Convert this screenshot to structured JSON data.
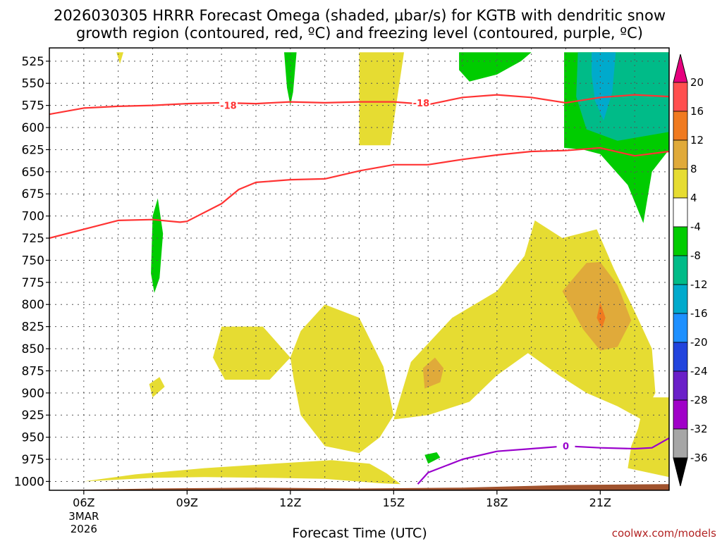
{
  "title": {
    "line1": "2026030305 HRRR Forecast Omega (shaded, μbar/s) for KGTB with dendritic snow",
    "line2": "growth region (contoured, red, ºC) and freezing level (contoured, purple, ºC)"
  },
  "credit": "coolwx.com/models",
  "chart_data": {
    "type": "time-height",
    "title": "2026030305 HRRR Forecast Omega (shaded, μbar/s) for KGTB with dendritic snow growth region (contoured, red, ºC) and freezing level (contoured, purple, ºC)",
    "xlabel": "Forecast Time (UTC)",
    "ylabel": "",
    "x_range_hours_utc": [
      5,
      23.0
    ],
    "y_range_hpa": [
      1010,
      510
    ],
    "y_reversed": true,
    "grid": true,
    "x_ticks": [
      {
        "hour": 6,
        "label": "06Z",
        "date": [
          "3MAR",
          "2026"
        ]
      },
      {
        "hour": 9,
        "label": "09Z"
      },
      {
        "hour": 12,
        "label": "12Z"
      },
      {
        "hour": 15,
        "label": "15Z"
      },
      {
        "hour": 18,
        "label": "18Z"
      },
      {
        "hour": 21,
        "label": "21Z"
      }
    ],
    "y_ticks": [
      525,
      550,
      575,
      600,
      625,
      650,
      675,
      700,
      725,
      750,
      775,
      800,
      825,
      850,
      875,
      900,
      925,
      950,
      975,
      1000
    ],
    "colorbar": {
      "units": "μbar/s",
      "bounds": [
        20,
        16,
        12,
        8,
        4,
        -4,
        -8,
        -12,
        -16,
        -20,
        -24,
        -28,
        -32,
        -36
      ],
      "colors": [
        "#ff4f4f",
        "#f07a20",
        "#e0aa3a",
        "#e6dc32",
        "#ffffff",
        "#00cc00",
        "#00bb88",
        "#00aacc",
        "#1e90ff",
        "#2244dd",
        "#6a1fc8",
        "#a000c8",
        "#a6a6a6"
      ],
      "top_arrow_color": "#e6007e",
      "bottom_arrow_color": "#000000"
    },
    "omega_regions": [
      {
        "class": "4 to 8",
        "color": "#e6dc32",
        "points": [
          [
            6.0,
            1000
          ],
          [
            8,
            996
          ],
          [
            9.5,
            995
          ],
          [
            11.5,
            996
          ],
          [
            13,
            997
          ],
          [
            14.6,
            1002
          ],
          [
            15.2,
            1003
          ],
          [
            14.8,
            991
          ],
          [
            14.3,
            980
          ],
          [
            13.2,
            976
          ],
          [
            11.5,
            980
          ],
          [
            9.5,
            985
          ],
          [
            7.5,
            992
          ]
        ]
      },
      {
        "class": "4 to 8",
        "color": "#e6dc32",
        "points": [
          [
            9.75,
            860
          ],
          [
            10.0,
            825
          ],
          [
            11.2,
            825
          ],
          [
            12.0,
            860
          ],
          [
            11.4,
            885
          ],
          [
            10.1,
            885
          ]
        ]
      },
      {
        "class": "4 to 8",
        "color": "#e6dc32",
        "points": [
          [
            12.0,
            860
          ],
          [
            12.3,
            830
          ],
          [
            13.0,
            800
          ],
          [
            14.0,
            815
          ],
          [
            14.7,
            870
          ],
          [
            15.0,
            925
          ],
          [
            14.6,
            950
          ],
          [
            14.0,
            968
          ],
          [
            13.0,
            960
          ],
          [
            12.3,
            925
          ],
          [
            12.1,
            885
          ]
        ]
      },
      {
        "class": "4 to 8",
        "color": "#e6dc32",
        "points": [
          [
            15.0,
            930
          ],
          [
            15.5,
            865
          ],
          [
            16.7,
            815
          ],
          [
            18.0,
            785
          ],
          [
            18.8,
            745
          ],
          [
            19.1,
            705
          ],
          [
            19.9,
            725
          ],
          [
            20.9,
            715
          ],
          [
            21.4,
            760
          ],
          [
            22.0,
            808
          ],
          [
            22.5,
            850
          ],
          [
            22.6,
            900
          ],
          [
            22.2,
            930
          ],
          [
            21.5,
            915
          ],
          [
            20.6,
            900
          ],
          [
            19.8,
            880
          ],
          [
            18.9,
            855
          ],
          [
            18.0,
            880
          ],
          [
            17.2,
            910
          ],
          [
            16.0,
            925
          ]
        ]
      },
      {
        "class": "4 to 8",
        "color": "#e6dc32",
        "points": [
          [
            22.1,
            940
          ],
          [
            22.3,
            905
          ],
          [
            23.0,
            905
          ],
          [
            23.0,
            995
          ],
          [
            21.8,
            985
          ],
          [
            21.9,
            960
          ]
        ]
      },
      {
        "class": "4 to 8",
        "color": "#e6dc32",
        "points": [
          [
            14.0,
            515
          ],
          [
            15.3,
            515
          ],
          [
            14.9,
            620
          ],
          [
            14.0,
            620
          ]
        ]
      },
      {
        "class": "4 to 8",
        "color": "#e6dc32",
        "points": [
          [
            6.95,
            515
          ],
          [
            7.15,
            515
          ],
          [
            7.05,
            528
          ]
        ]
      },
      {
        "class": "4 to 8",
        "color": "#e6dc32",
        "points": [
          [
            7.9,
            890
          ],
          [
            8.2,
            882
          ],
          [
            8.35,
            893
          ],
          [
            8.0,
            905
          ]
        ]
      },
      {
        "class": "8 to 12",
        "color": "#e0aa3a",
        "points": [
          [
            19.9,
            785
          ],
          [
            20.6,
            753
          ],
          [
            21.0,
            752
          ],
          [
            21.5,
            778
          ],
          [
            21.9,
            818
          ],
          [
            21.5,
            848
          ],
          [
            21.0,
            852
          ],
          [
            20.5,
            828
          ]
        ]
      },
      {
        "class": "8 to 12",
        "color": "#e0aa3a",
        "points": [
          [
            15.85,
            872
          ],
          [
            16.2,
            860
          ],
          [
            16.45,
            872
          ],
          [
            16.35,
            888
          ],
          [
            15.9,
            895
          ]
        ]
      },
      {
        "class": "12 to 16",
        "color": "#f07a20",
        "points": [
          [
            20.9,
            815
          ],
          [
            21.0,
            798
          ],
          [
            21.15,
            815
          ],
          [
            21.05,
            827
          ]
        ]
      },
      {
        "class": "-8 to -4",
        "color": "#00cc00",
        "points": [
          [
            11.82,
            515
          ],
          [
            12.18,
            515
          ],
          [
            12.08,
            560
          ],
          [
            12.0,
            575
          ],
          [
            11.9,
            555
          ]
        ]
      },
      {
        "class": "-8 to -4",
        "color": "#00cc00",
        "points": [
          [
            8.0,
            700
          ],
          [
            8.15,
            680
          ],
          [
            8.3,
            720
          ],
          [
            8.2,
            770
          ],
          [
            8.05,
            787
          ],
          [
            7.95,
            765
          ]
        ]
      },
      {
        "class": "-8 to -4",
        "color": "#00cc00",
        "points": [
          [
            16.9,
            515
          ],
          [
            19.0,
            515
          ],
          [
            18.7,
            525
          ],
          [
            18.0,
            540
          ],
          [
            17.2,
            548
          ],
          [
            16.9,
            535
          ]
        ]
      },
      {
        "class": "-8 to -4",
        "color": "#00cc00",
        "points": [
          [
            19.95,
            515
          ],
          [
            23.0,
            515
          ],
          [
            23.0,
            625
          ],
          [
            22.5,
            650
          ],
          [
            22.25,
            708
          ],
          [
            21.8,
            665
          ],
          [
            21.0,
            630
          ],
          [
            20.5,
            625
          ],
          [
            19.95,
            623
          ],
          [
            19.95,
            560
          ]
        ]
      },
      {
        "class": "-8 to -4",
        "color": "#00cc00",
        "points": [
          [
            15.9,
            970
          ],
          [
            16.25,
            967
          ],
          [
            16.35,
            973
          ],
          [
            16.0,
            980
          ]
        ]
      },
      {
        "class": "-12 to -8",
        "color": "#00bb88",
        "points": [
          [
            20.35,
            515
          ],
          [
            23.0,
            515
          ],
          [
            23.0,
            605
          ],
          [
            21.5,
            615
          ],
          [
            20.6,
            602
          ],
          [
            20.3,
            565
          ]
        ]
      },
      {
        "class": "-16 to -12",
        "color": "#00aacc",
        "points": [
          [
            20.75,
            515
          ],
          [
            21.45,
            515
          ],
          [
            21.35,
            560
          ],
          [
            21.1,
            592
          ],
          [
            20.85,
            570
          ],
          [
            20.75,
            540
          ]
        ]
      }
    ],
    "series": [
      {
        "name": "-18",
        "color": "#ff3333",
        "label_positions": [
          [
            10.2,
            575.0
          ],
          [
            15.8,
            572.0
          ]
        ],
        "points": [
          [
            5.0,
            585.0
          ],
          [
            6.0,
            578.0
          ],
          [
            7.0,
            576.0
          ],
          [
            8.0,
            575.0
          ],
          [
            9.0,
            573.0
          ],
          [
            10.0,
            572.0
          ],
          [
            11.0,
            573.0
          ],
          [
            12.0,
            571.0
          ],
          [
            13.0,
            572.0
          ],
          [
            14.0,
            571.0
          ],
          [
            15.0,
            571.0
          ],
          [
            16.0,
            574.0
          ],
          [
            17.0,
            566.0
          ],
          [
            18.0,
            563.0
          ],
          [
            19.0,
            566.0
          ],
          [
            20.0,
            572.0
          ],
          [
            21.0,
            566.0
          ],
          [
            22.0,
            563.0
          ],
          [
            23.0,
            565.0
          ]
        ]
      },
      {
        "name": "",
        "color": "#ff3333",
        "points": [
          [
            5.0,
            725.0
          ],
          [
            6.0,
            715.0
          ],
          [
            7.0,
            705.0
          ],
          [
            8.0,
            704.0
          ],
          [
            8.8,
            707.0
          ],
          [
            9.0,
            706.0
          ],
          [
            10.0,
            686.0
          ],
          [
            10.5,
            670.0
          ],
          [
            11.0,
            662.0
          ],
          [
            12.0,
            659.0
          ],
          [
            13.0,
            658.0
          ],
          [
            14.0,
            649.0
          ],
          [
            15.0,
            642.0
          ],
          [
            16.0,
            642.0
          ],
          [
            17.0,
            636.0
          ],
          [
            18.0,
            631.0
          ],
          [
            19.0,
            627.0
          ],
          [
            20.0,
            626.0
          ],
          [
            21.0,
            623.0
          ],
          [
            22.0,
            632.0
          ],
          [
            23.0,
            627.0
          ]
        ]
      },
      {
        "name": "0",
        "color": "#9900cc",
        "label_positions": [
          [
            20.0,
            960.0
          ]
        ],
        "points": [
          [
            15.7,
            1003.0
          ],
          [
            16.0,
            990.0
          ],
          [
            17.0,
            975.0
          ],
          [
            18.0,
            966.0
          ],
          [
            19.0,
            963.0
          ],
          [
            20.0,
            960.0
          ],
          [
            21.0,
            962.0
          ],
          [
            22.0,
            963.0
          ],
          [
            22.5,
            962.0
          ],
          [
            23.0,
            951.0
          ]
        ]
      }
    ],
    "terrain": {
      "color": "#a0522d",
      "points": [
        [
          5.0,
          1010
        ],
        [
          8.0,
          1008
        ],
        [
          11.0,
          1007.0
        ],
        [
          14.0,
          1008
        ],
        [
          17.0,
          1007.0
        ],
        [
          20.0,
          1004
        ],
        [
          23.0,
          1003
        ]
      ]
    }
  }
}
